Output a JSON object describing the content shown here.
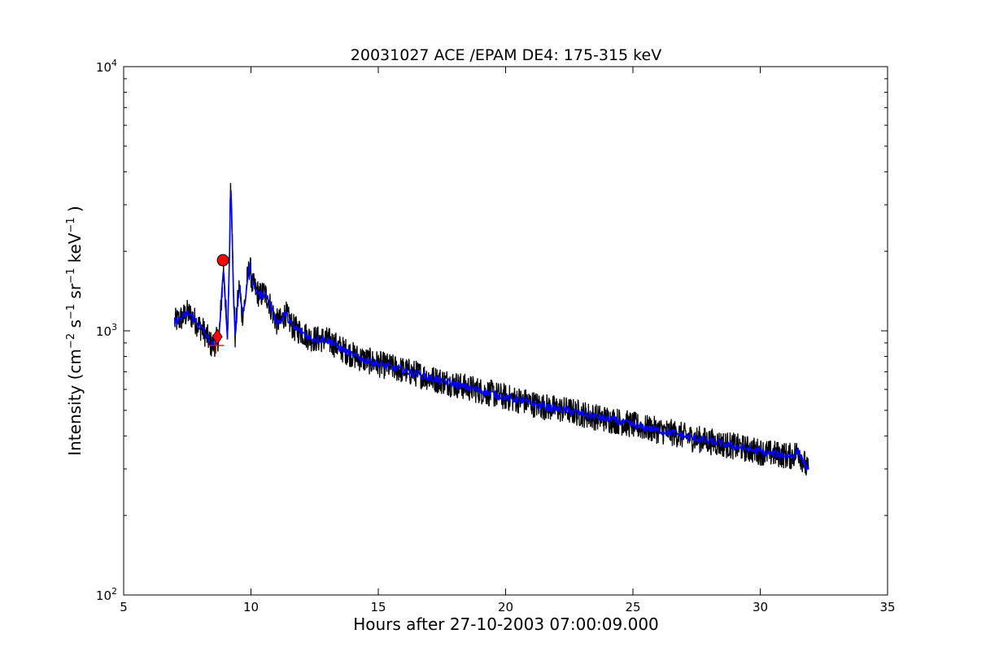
{
  "chart_data": {
    "type": "line",
    "title": "20031027 ACE /EPAM DE4: 175-315 keV",
    "xlabel": "Hours after 27-10-2003 07:00:09.000",
    "ylabel": {
      "prefix": "Intensity (cm",
      "exp1": "−2",
      "s": " s",
      "exp2": "−1",
      "sr": " sr",
      "exp3": "−1",
      "kev": " keV",
      "exp4": "−1",
      "suffix": " )"
    },
    "xlim": [
      5,
      35
    ],
    "ylim": [
      100,
      10000
    ],
    "yscale": "log",
    "grid": false,
    "x_ticks": [
      {
        "value": 5,
        "label": "5"
      },
      {
        "value": 10,
        "label": "10"
      },
      {
        "value": 15,
        "label": "15"
      },
      {
        "value": 20,
        "label": "20"
      },
      {
        "value": 25,
        "label": "25"
      },
      {
        "value": 30,
        "label": "30"
      },
      {
        "value": 35,
        "label": "35"
      }
    ],
    "y_ticks": [
      {
        "value": 100,
        "base": "10",
        "exp": "2"
      },
      {
        "value": 1000,
        "base": "10",
        "exp": "3"
      },
      {
        "value": 10000,
        "base": "10",
        "exp": "4"
      }
    ],
    "series": [
      {
        "kind": "raw",
        "color": "#000000",
        "noise": 0.12,
        "points": [
          [
            7.0,
            1080
          ],
          [
            7.3,
            1120
          ],
          [
            7.5,
            1170
          ],
          [
            7.7,
            1130
          ],
          [
            7.9,
            1060
          ],
          [
            8.1,
            1010
          ],
          [
            8.3,
            940
          ],
          [
            8.45,
            880
          ],
          [
            8.6,
            900
          ],
          [
            8.75,
            960
          ],
          [
            8.85,
            1350
          ],
          [
            8.92,
            1700
          ],
          [
            9.0,
            1300
          ],
          [
            9.07,
            900
          ],
          [
            9.15,
            1800
          ],
          [
            9.2,
            3750
          ],
          [
            9.25,
            2700
          ],
          [
            9.3,
            1500
          ],
          [
            9.38,
            950
          ],
          [
            9.45,
            1200
          ],
          [
            9.55,
            1500
          ],
          [
            9.65,
            1150
          ],
          [
            9.75,
            1250
          ],
          [
            9.85,
            1550
          ],
          [
            9.95,
            1780
          ],
          [
            10.05,
            1500
          ],
          [
            10.2,
            1420
          ],
          [
            10.35,
            1360
          ],
          [
            10.5,
            1390
          ],
          [
            10.65,
            1340
          ],
          [
            10.8,
            1210
          ],
          [
            11.0,
            1080
          ],
          [
            11.2,
            1090
          ],
          [
            11.35,
            1170
          ],
          [
            11.5,
            1090
          ],
          [
            11.7,
            1020
          ],
          [
            12.0,
            990
          ],
          [
            12.3,
            940
          ],
          [
            12.6,
            930
          ],
          [
            12.9,
            930
          ],
          [
            13.2,
            900
          ],
          [
            13.5,
            860
          ],
          [
            13.8,
            830
          ],
          [
            14.1,
            800
          ],
          [
            14.4,
            780
          ],
          [
            14.8,
            760
          ],
          [
            15.2,
            740
          ],
          [
            15.7,
            720
          ],
          [
            16.2,
            700
          ],
          [
            16.7,
            680
          ],
          [
            17.2,
            655
          ],
          [
            17.7,
            640
          ],
          [
            18.2,
            620
          ],
          [
            18.8,
            600
          ],
          [
            19.4,
            580
          ],
          [
            20.0,
            560
          ],
          [
            20.6,
            545
          ],
          [
            21.2,
            525
          ],
          [
            21.8,
            510
          ],
          [
            22.4,
            500
          ],
          [
            23.0,
            485
          ],
          [
            23.6,
            470
          ],
          [
            24.2,
            460
          ],
          [
            24.8,
            445
          ],
          [
            25.4,
            430
          ],
          [
            26.0,
            420
          ],
          [
            26.6,
            410
          ],
          [
            27.2,
            395
          ],
          [
            27.8,
            385
          ],
          [
            28.4,
            375
          ],
          [
            29.0,
            365
          ],
          [
            29.6,
            355
          ],
          [
            30.2,
            345
          ],
          [
            30.8,
            340
          ],
          [
            31.2,
            335
          ],
          [
            31.5,
            350
          ],
          [
            31.7,
            320
          ],
          [
            31.9,
            290
          ]
        ]
      },
      {
        "kind": "smoothed",
        "color": "#0000ff",
        "noise": 0.035,
        "points": [
          [
            7.0,
            1080
          ],
          [
            7.3,
            1120
          ],
          [
            7.5,
            1170
          ],
          [
            7.7,
            1130
          ],
          [
            7.9,
            1060
          ],
          [
            8.1,
            1010
          ],
          [
            8.3,
            940
          ],
          [
            8.45,
            880
          ],
          [
            8.6,
            900
          ],
          [
            8.75,
            960
          ],
          [
            8.85,
            1350
          ],
          [
            8.92,
            1700
          ],
          [
            9.0,
            1300
          ],
          [
            9.07,
            900
          ],
          [
            9.15,
            1800
          ],
          [
            9.2,
            3750
          ],
          [
            9.25,
            2700
          ],
          [
            9.3,
            1500
          ],
          [
            9.38,
            950
          ],
          [
            9.45,
            1200
          ],
          [
            9.55,
            1500
          ],
          [
            9.65,
            1150
          ],
          [
            9.75,
            1250
          ],
          [
            9.85,
            1550
          ],
          [
            9.95,
            1780
          ],
          [
            10.05,
            1500
          ],
          [
            10.2,
            1420
          ],
          [
            10.35,
            1360
          ],
          [
            10.5,
            1390
          ],
          [
            10.65,
            1340
          ],
          [
            10.8,
            1210
          ],
          [
            11.0,
            1080
          ],
          [
            11.2,
            1090
          ],
          [
            11.35,
            1170
          ],
          [
            11.5,
            1090
          ],
          [
            11.7,
            1020
          ],
          [
            12.0,
            990
          ],
          [
            12.3,
            940
          ],
          [
            12.6,
            930
          ],
          [
            12.9,
            930
          ],
          [
            13.2,
            900
          ],
          [
            13.5,
            860
          ],
          [
            13.8,
            830
          ],
          [
            14.1,
            800
          ],
          [
            14.4,
            780
          ],
          [
            14.8,
            760
          ],
          [
            15.2,
            740
          ],
          [
            15.7,
            720
          ],
          [
            16.2,
            700
          ],
          [
            16.7,
            680
          ],
          [
            17.2,
            655
          ],
          [
            17.7,
            640
          ],
          [
            18.2,
            620
          ],
          [
            18.8,
            600
          ],
          [
            19.4,
            580
          ],
          [
            20.0,
            560
          ],
          [
            20.6,
            545
          ],
          [
            21.2,
            525
          ],
          [
            21.8,
            510
          ],
          [
            22.4,
            500
          ],
          [
            23.0,
            485
          ],
          [
            23.6,
            470
          ],
          [
            24.2,
            460
          ],
          [
            24.8,
            445
          ],
          [
            25.4,
            430
          ],
          [
            26.0,
            420
          ],
          [
            26.6,
            410
          ],
          [
            27.2,
            395
          ],
          [
            27.8,
            385
          ],
          [
            28.4,
            375
          ],
          [
            29.0,
            365
          ],
          [
            29.6,
            355
          ],
          [
            30.2,
            345
          ],
          [
            30.8,
            340
          ],
          [
            31.2,
            335
          ],
          [
            31.5,
            350
          ],
          [
            31.7,
            320
          ],
          [
            31.9,
            290
          ]
        ]
      }
    ],
    "markers": [
      {
        "shape": "circle",
        "x": 8.9,
        "y": 1850,
        "color": "#ff0000"
      },
      {
        "shape": "diamond",
        "x": 8.68,
        "y": 950,
        "color": "#ff0000"
      },
      {
        "shape": "plus",
        "x": 8.62,
        "y": 880,
        "color": "#ff0000"
      }
    ]
  }
}
